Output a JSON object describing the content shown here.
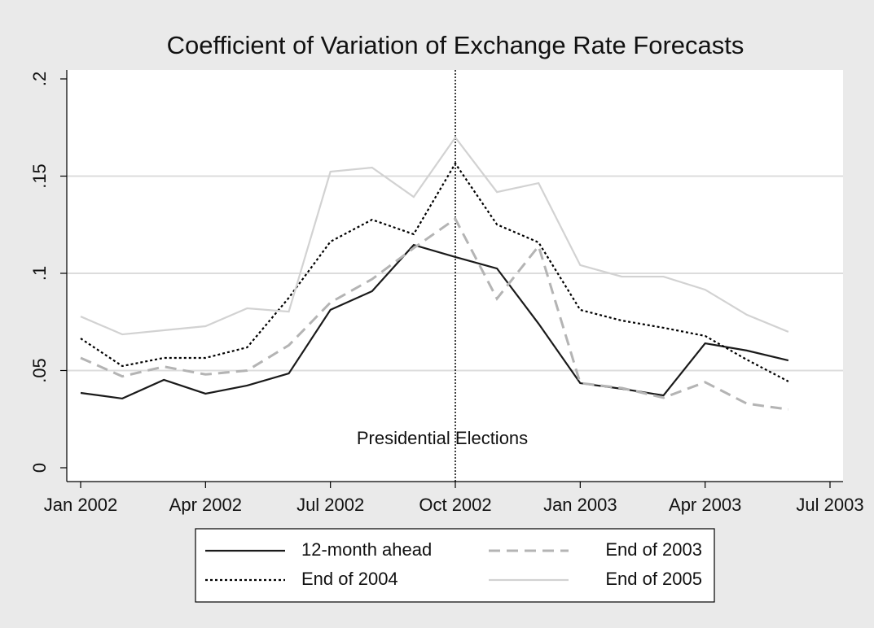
{
  "chart_data": {
    "type": "line",
    "title": "Coefficient of Variation of Exchange Rate Forecasts",
    "x": [
      "2002-01",
      "2002-02",
      "2002-03",
      "2002-04",
      "2002-05",
      "2002-06",
      "2002-07",
      "2002-08",
      "2002-09",
      "2002-10",
      "2002-11",
      "2002-12",
      "2003-01",
      "2003-02",
      "2003-03",
      "2003-04",
      "2003-05",
      "2003-06"
    ],
    "xlim": [
      "2002-01",
      "2003-07"
    ],
    "xticks": [
      {
        "value": "2002-01",
        "label": "Jan 2002"
      },
      {
        "value": "2002-04",
        "label": "Apr 2002"
      },
      {
        "value": "2002-07",
        "label": "Jul 2002"
      },
      {
        "value": "2002-10",
        "label": "Oct 2002"
      },
      {
        "value": "2003-01",
        "label": "Jan 2003"
      },
      {
        "value": "2003-04",
        "label": "Apr 2003"
      },
      {
        "value": "2003-07",
        "label": "Jul 2003"
      }
    ],
    "ylim": [
      0,
      0.2
    ],
    "yticks": [
      {
        "value": 0,
        "label": "0"
      },
      {
        "value": 0.05,
        "label": ".05"
      },
      {
        "value": 0.1,
        "label": ".1"
      },
      {
        "value": 0.15,
        "label": ".15"
      },
      {
        "value": 0.2,
        "label": ".2"
      }
    ],
    "grid": true,
    "vline": "2002-10",
    "annotation": "Presidential Elections",
    "series": [
      {
        "name": "12-month ahead",
        "color": "#1a1a1a",
        "dash": "solid",
        "values": [
          0.0385,
          0.0356,
          0.0452,
          0.0381,
          0.0423,
          0.0485,
          0.0812,
          0.0908,
          0.1146,
          0.1084,
          0.1025,
          0.0741,
          0.0435,
          0.0406,
          0.0372,
          0.064,
          0.0603,
          0.0552
        ]
      },
      {
        "name": "End of 2003",
        "color": "#b4b4b4",
        "dash": "dashed",
        "values": [
          0.0565,
          0.047,
          0.052,
          0.048,
          0.05,
          0.063,
          0.085,
          0.097,
          0.113,
          0.128,
          0.087,
          0.114,
          0.0435,
          0.041,
          0.036,
          0.044,
          0.033,
          0.03
        ]
      },
      {
        "name": "End of 2004",
        "color": "#000000",
        "dash": "dotted",
        "values": [
          0.0665,
          0.0523,
          0.0565,
          0.0565,
          0.0619,
          0.0874,
          0.1163,
          0.1276,
          0.1201,
          0.1565,
          0.1251,
          0.1159,
          0.0812,
          0.0757,
          0.072,
          0.0678,
          0.0556,
          0.0444
        ]
      },
      {
        "name": "End of 2005",
        "color": "#d2d2d2",
        "dash": "solid",
        "values": [
          0.0778,
          0.0686,
          0.0707,
          0.0728,
          0.082,
          0.0803,
          0.1523,
          0.1544,
          0.1393,
          0.1699,
          0.1418,
          0.1464,
          0.1042,
          0.0983,
          0.0983,
          0.0916,
          0.0787,
          0.0699
        ]
      }
    ]
  }
}
